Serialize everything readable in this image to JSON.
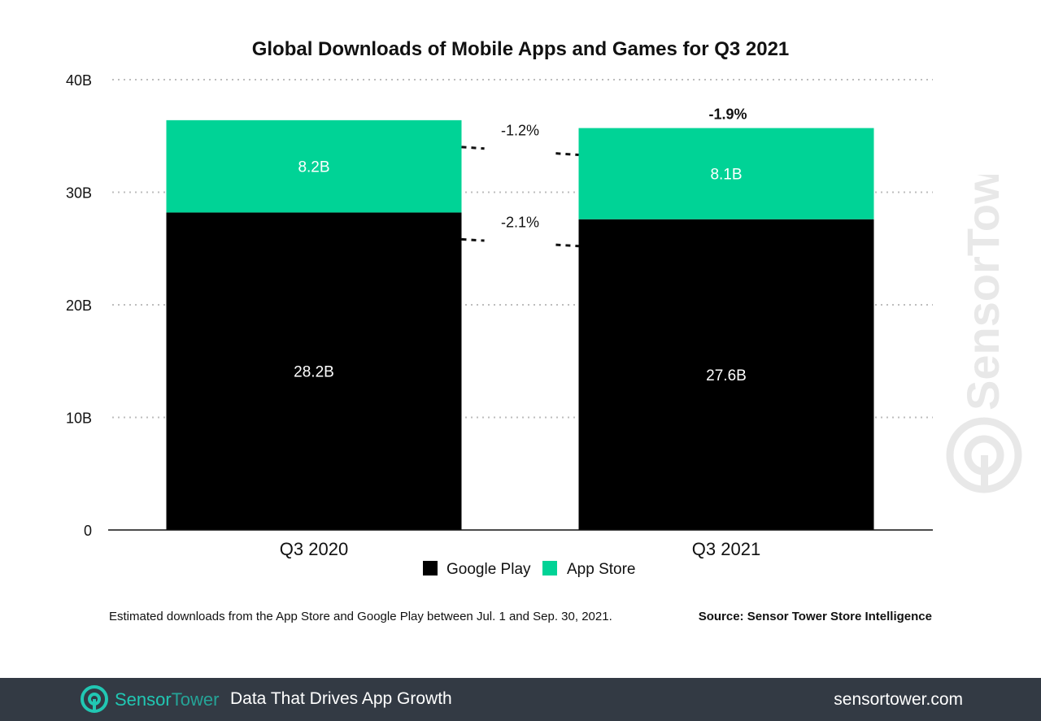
{
  "chart_data": {
    "type": "bar",
    "stacked": true,
    "title": "Global Downloads of Mobile Apps and Games for Q3 2021",
    "categories": [
      "Q3 2020",
      "Q3 2021"
    ],
    "series": [
      {
        "name": "Google Play",
        "values": [
          28.2,
          27.6
        ],
        "labels": [
          "28.2B",
          "27.6B"
        ],
        "color": "#000000"
      },
      {
        "name": "App Store",
        "values": [
          8.2,
          8.1
        ],
        "labels": [
          "8.2B",
          "8.1B"
        ],
        "color": "#00d396"
      }
    ],
    "y_ticks": [
      "0",
      "10B",
      "20B",
      "30B",
      "40B"
    ],
    "y_tick_values": [
      0,
      10,
      20,
      30,
      40
    ],
    "ylim": [
      0,
      40
    ],
    "grid": true,
    "legend": "bottom",
    "segment_changes": [
      "-2.1%",
      "-1.2%"
    ],
    "total_change": "-1.9%"
  },
  "footnote": "Estimated downloads from the App Store and Google Play between Jul. 1 and Sep. 30, 2021.",
  "source": "Source: Sensor Tower Store Intelligence",
  "watermark": "SensorTower",
  "footer": {
    "brand_sensor": "Sensor",
    "brand_tower": "Tower",
    "tagline": "Data That Drives App Growth",
    "url": "sensortower.com",
    "background": "#333a44",
    "brand_color": "#21c7b3"
  }
}
